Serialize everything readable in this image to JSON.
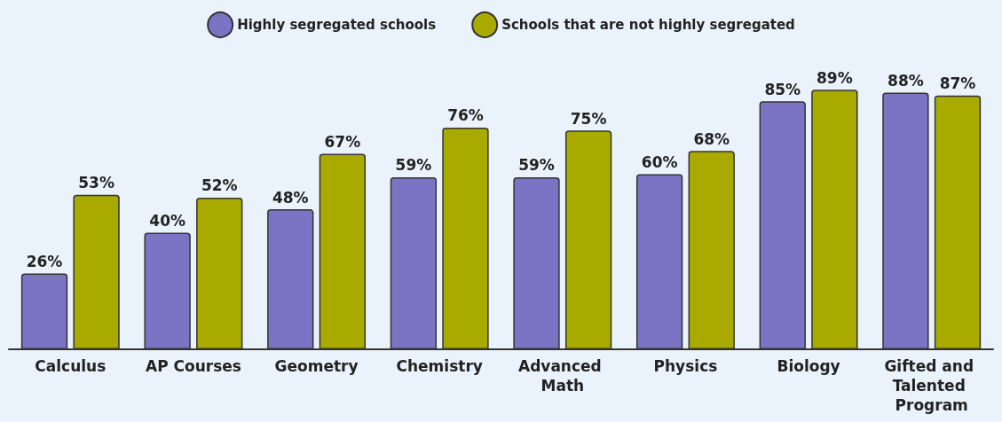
{
  "chart_data": {
    "type": "bar",
    "categories": [
      "Calculus",
      "AP Courses",
      "Geometry",
      "Chemistry",
      "Advanced Math",
      "Physics",
      "Biology",
      "Gifted and Talented Program"
    ],
    "series": [
      {
        "name": "Highly segregated schools",
        "color": "#7b74c4",
        "values": [
          26,
          40,
          48,
          59,
          59,
          60,
          85,
          88
        ],
        "value_labels": [
          "26%",
          "40%",
          "48%",
          "59%",
          "59%",
          "60%",
          "85%",
          "88%"
        ]
      },
      {
        "name": "Schools that are not highly segregated",
        "color": "#a8aa00",
        "values": [
          53,
          52,
          67,
          76,
          75,
          68,
          89,
          87
        ],
        "value_labels": [
          "53%",
          "52%",
          "67%",
          "76%",
          "75%",
          "68%",
          "89%",
          "87%"
        ]
      }
    ],
    "legend": "top"
  }
}
